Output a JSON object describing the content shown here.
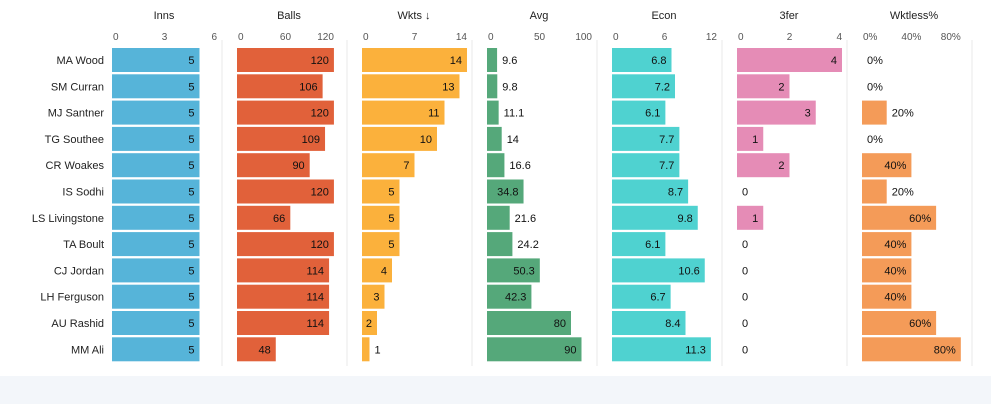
{
  "chart_data": {
    "type": "bar",
    "orientation": "horizontal",
    "sorted_by": "Wkts",
    "sort_indicator": "↓",
    "categories": [
      "MA Wood",
      "SM Curran",
      "MJ Santner",
      "TG Southee",
      "CR Woakes",
      "IS Sodhi",
      "LS Livingstone",
      "TA Boult",
      "CJ Jordan",
      "LH Ferguson",
      "AU Rashid",
      "MM Ali"
    ],
    "series": [
      {
        "name": "Inns",
        "color": "#56b4d9",
        "ticks": [
          "0",
          "3",
          "6"
        ],
        "max": 6,
        "values": [
          5,
          5,
          5,
          5,
          5,
          5,
          5,
          5,
          5,
          5,
          5,
          5
        ],
        "labels": [
          "5",
          "5",
          "5",
          "5",
          "5",
          "5",
          "5",
          "5",
          "5",
          "5",
          "5",
          "5"
        ]
      },
      {
        "name": "Balls",
        "color": "#e1613a",
        "ticks": [
          "0",
          "60",
          "120"
        ],
        "max": 130,
        "values": [
          120,
          106,
          120,
          109,
          90,
          120,
          66,
          120,
          114,
          114,
          114,
          48
        ],
        "labels": [
          "120",
          "106",
          "120",
          "109",
          "90",
          "120",
          "66",
          "120",
          "114",
          "114",
          "114",
          "48"
        ]
      },
      {
        "name": "Wkts",
        "color": "#fbb13c",
        "ticks": [
          "0",
          "7",
          "14"
        ],
        "max": 14,
        "values": [
          14,
          13,
          11,
          10,
          7,
          5,
          5,
          5,
          4,
          3,
          2,
          1
        ],
        "labels": [
          "14",
          "13",
          "11",
          "10",
          "7",
          "5",
          "5",
          "5",
          "4",
          "3",
          "2",
          "1"
        ]
      },
      {
        "name": "Avg",
        "color": "#55a87a",
        "ticks": [
          "0",
          "50",
          "100"
        ],
        "max": 100,
        "values": [
          9.6,
          9.8,
          11.1,
          14,
          16.6,
          34.8,
          21.6,
          24.2,
          50.3,
          42.3,
          80,
          90
        ],
        "labels": [
          "9.6",
          "9.8",
          "11.1",
          "14",
          "16.6",
          "34.8",
          "21.6",
          "24.2",
          "50.3",
          "42.3",
          "80",
          "90"
        ]
      },
      {
        "name": "Econ",
        "color": "#4fd2d0",
        "ticks": [
          "0",
          "6",
          "12"
        ],
        "max": 12,
        "values": [
          6.8,
          7.2,
          6.1,
          7.7,
          7.7,
          8.7,
          9.8,
          6.1,
          10.6,
          6.7,
          8.4,
          11.3
        ],
        "labels": [
          "6.8",
          "7.2",
          "6.1",
          "7.7",
          "7.7",
          "8.7",
          "9.8",
          "6.1",
          "10.6",
          "6.7",
          "8.4",
          "11.3"
        ]
      },
      {
        "name": "3fer",
        "color": "#e58cb6",
        "ticks": [
          "0",
          "2",
          "4"
        ],
        "max": 4,
        "values": [
          4,
          2,
          3,
          1,
          2,
          0,
          1,
          0,
          0,
          0,
          0,
          0
        ],
        "labels": [
          "4",
          "2",
          "3",
          "1",
          "2",
          "0",
          "1",
          "0",
          "0",
          "0",
          "0",
          "0"
        ]
      },
      {
        "name": "Wktless%",
        "color": "#f49b58",
        "ticks": [
          "0%",
          "40%",
          "80%"
        ],
        "max": 85,
        "values": [
          0,
          0,
          20,
          0,
          40,
          20,
          60,
          40,
          40,
          40,
          60,
          80
        ],
        "labels": [
          "0%",
          "0%",
          "20%",
          "0%",
          "40%",
          "20%",
          "60%",
          "40%",
          "40%",
          "40%",
          "60%",
          "80%"
        ]
      }
    ]
  }
}
